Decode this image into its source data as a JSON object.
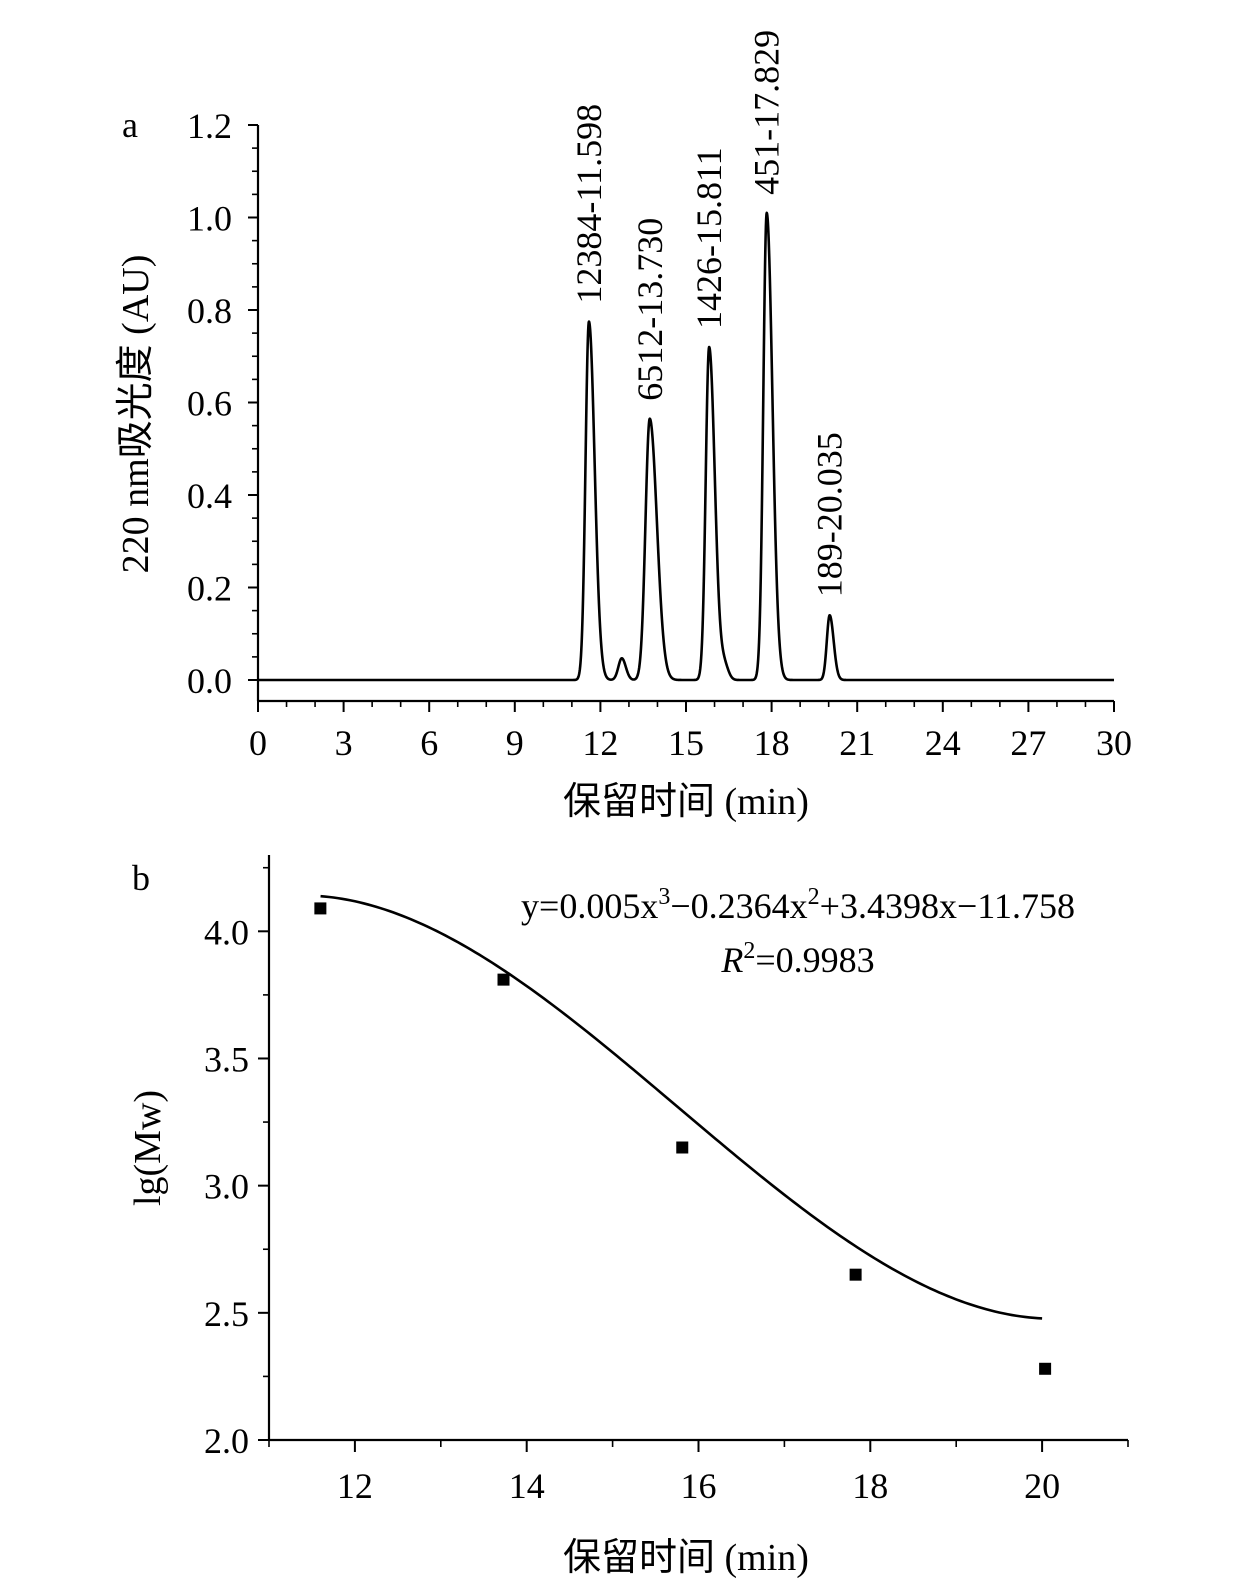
{
  "chart_data": [
    {
      "panel": "a",
      "type": "line",
      "xlabel": "保留时间 (min)",
      "ylabel": "220 nm吸光度 (AU)",
      "xlim": [
        0,
        30
      ],
      "ylim": [
        0,
        1.2
      ],
      "xticks": [
        "0",
        "3",
        "6",
        "9",
        "12",
        "15",
        "18",
        "21",
        "24",
        "27",
        "30"
      ],
      "yticks": [
        "0.0",
        "0.2",
        "0.4",
        "0.6",
        "0.8",
        "1.0",
        "1.2"
      ],
      "grid": false,
      "peaks": [
        {
          "label": "12384-11.598",
          "x": 11.598,
          "y": 0.775
        },
        {
          "label": "6512-13.730",
          "x": 13.73,
          "y": 0.565
        },
        {
          "label": "1426-15.811",
          "x": 15.811,
          "y": 0.72
        },
        {
          "label": "451-17.829",
          "x": 17.829,
          "y": 1.01
        },
        {
          "label": "189-20.035",
          "x": 20.035,
          "y": 0.14
        }
      ],
      "minor_peaks": [
        {
          "x": 12.75,
          "y": 0.047
        },
        {
          "x": 16.35,
          "y": 0.03
        }
      ]
    },
    {
      "panel": "b",
      "type": "scatter",
      "xlabel": "保留时间 (min)",
      "ylabel": "lg(Mw)",
      "xlim": [
        11,
        21
      ],
      "ylim": [
        2.0,
        4.3
      ],
      "xticks": [
        "12",
        "14",
        "16",
        "18",
        "20"
      ],
      "yticks": [
        "2.0",
        "2.5",
        "3.0",
        "3.5",
        "4.0"
      ],
      "grid": false,
      "points": [
        {
          "x": 11.598,
          "y": 4.09
        },
        {
          "x": 13.73,
          "y": 3.81
        },
        {
          "x": 15.811,
          "y": 3.15
        },
        {
          "x": 17.829,
          "y": 2.65
        },
        {
          "x": 20.035,
          "y": 2.28
        }
      ],
      "fit": {
        "coefficients": [
          0.005,
          -0.2364,
          3.4398,
          -11.758
        ],
        "x_range": [
          11.6,
          20.0
        ]
      },
      "equation": {
        "prefix": "y=0.005x",
        "sup1": "3",
        "mid1": "−0.2364x",
        "sup2": "2",
        "tail": "+3.4398x−11.758"
      },
      "r2": {
        "symbol": "R",
        "sup": "2",
        "value": "=0.9983"
      }
    }
  ]
}
